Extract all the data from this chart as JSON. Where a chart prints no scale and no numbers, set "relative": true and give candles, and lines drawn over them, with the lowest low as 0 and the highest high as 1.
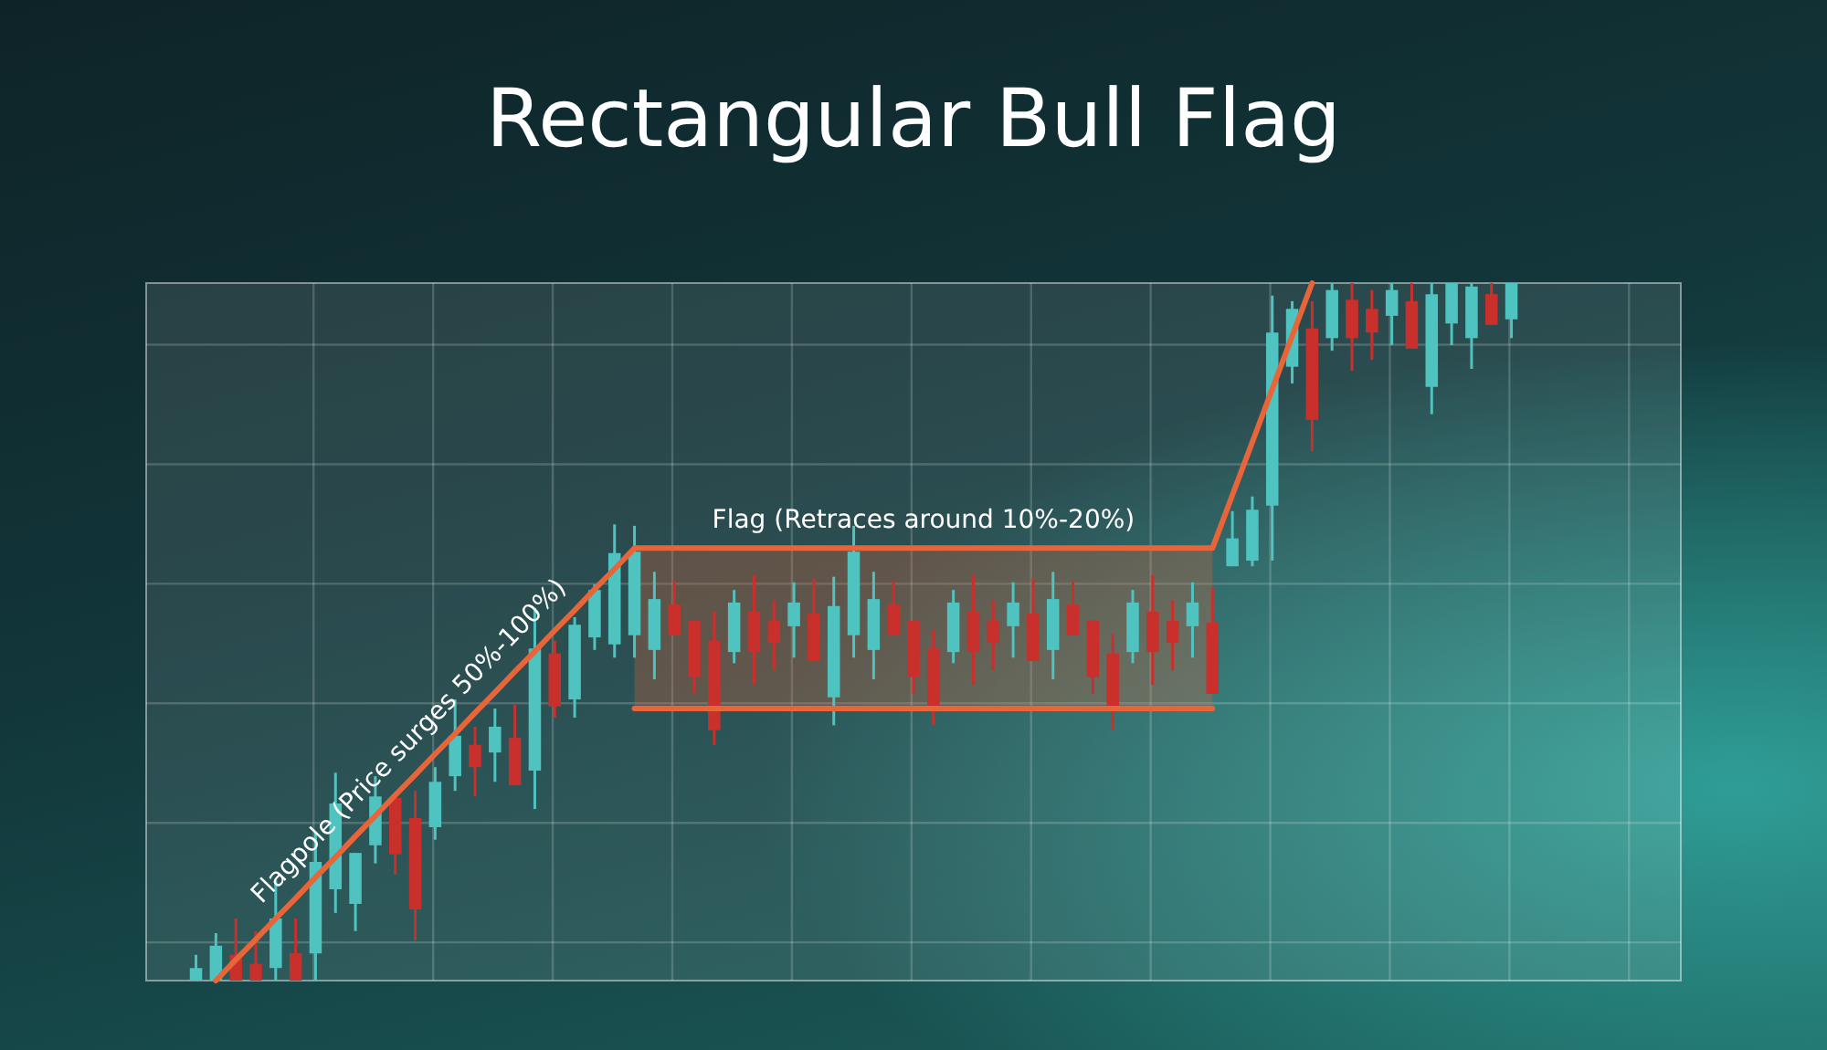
{
  "chart_data": {
    "type": "candlestick",
    "title": "Rectangular Bull Flag",
    "relative": true,
    "grid": true,
    "categories": [
      null,
      null,
      null,
      null,
      null,
      null,
      null,
      null,
      null,
      null,
      null,
      null,
      null,
      null,
      null,
      null,
      null,
      null,
      null,
      null,
      null,
      null,
      null,
      null,
      null,
      null,
      null,
      null,
      null,
      null,
      null,
      null,
      null,
      null,
      null,
      null,
      null,
      null,
      null,
      null,
      null,
      null,
      null,
      null,
      null,
      null,
      null,
      null,
      null,
      null,
      null,
      null,
      null,
      null,
      null,
      null,
      null,
      null,
      null,
      null,
      null,
      null,
      null,
      null,
      null,
      null,
      null,
      null,
      null,
      null,
      null,
      null,
      null,
      null,
      null,
      null,
      null
    ],
    "ohlc": [
      null,
      null,
      [
        0,
        0.037,
        0,
        0.018
      ],
      [
        0,
        0.068,
        0,
        0.05
      ],
      [
        0.037,
        0.089,
        0,
        0
      ],
      [
        0.024,
        0.071,
        0,
        0
      ],
      [
        0.018,
        0.144,
        0,
        0.089
      ],
      [
        0.039,
        0.089,
        0,
        0
      ],
      [
        0.039,
        0.212,
        0,
        0.17
      ],
      [
        0.131,
        0.298,
        0.097,
        0.254
      ],
      [
        0.11,
        0.183,
        0.071,
        0.183
      ],
      [
        0.194,
        0.293,
        0.168,
        0.264
      ],
      [
        0.262,
        0.262,
        0.152,
        0.181
      ],
      [
        0.233,
        0.272,
        0.058,
        0.102
      ],
      [
        0.22,
        0.306,
        0.202,
        0.285
      ],
      [
        0.293,
        0.403,
        0.272,
        0.351
      ],
      [
        0.338,
        0.364,
        0.264,
        0.306
      ],
      [
        0.327,
        0.39,
        0.285,
        0.364
      ],
      [
        0.348,
        0.395,
        0.28,
        0.28
      ],
      [
        0.301,
        0.534,
        0.246,
        0.476
      ],
      [
        0.469,
        0.487,
        0.377,
        0.393
      ],
      [
        0.403,
        0.521,
        0.377,
        0.51
      ],
      [
        0.492,
        0.568,
        0.474,
        0.56
      ],
      [
        0.482,
        0.654,
        0.463,
        0.613
      ],
      [
        0.495,
        0.652,
        0.463,
        0.615
      ],
      [
        0.474,
        0.586,
        0.432,
        0.547
      ],
      [
        0.539,
        0.573,
        0.495,
        0.495
      ],
      [
        0.516,
        0.516,
        0.411,
        0.435
      ],
      [
        0.487,
        0.529,
        0.338,
        0.359
      ],
      [
        0.471,
        0.56,
        0.455,
        0.542
      ],
      [
        0.529,
        0.581,
        0.424,
        0.471
      ],
      [
        0.516,
        0.545,
        0.445,
        0.484
      ],
      [
        0.508,
        0.571,
        0.463,
        0.542
      ],
      [
        0.526,
        0.576,
        0.458,
        0.458
      ],
      [
        0.406,
        0.579,
        0.366,
        0.537
      ],
      [
        0.495,
        0.652,
        0.463,
        0.615
      ],
      [
        0.474,
        0.586,
        0.432,
        0.547
      ],
      [
        0.539,
        0.573,
        0.495,
        0.495
      ],
      [
        0.516,
        0.516,
        0.411,
        0.435
      ],
      [
        0.476,
        0.503,
        0.366,
        0.39
      ],
      [
        0.471,
        0.56,
        0.455,
        0.542
      ],
      [
        0.529,
        0.581,
        0.424,
        0.471
      ],
      [
        0.516,
        0.545,
        0.445,
        0.484
      ],
      [
        0.508,
        0.571,
        0.463,
        0.542
      ],
      [
        0.526,
        0.576,
        0.458,
        0.458
      ],
      [
        0.474,
        0.586,
        0.432,
        0.547
      ],
      [
        0.539,
        0.573,
        0.495,
        0.495
      ],
      [
        0.516,
        0.516,
        0.411,
        0.435
      ],
      [
        0.469,
        0.497,
        0.359,
        0.39
      ],
      [
        0.471,
        0.56,
        0.455,
        0.542
      ],
      [
        0.529,
        0.581,
        0.424,
        0.471
      ],
      [
        0.516,
        0.545,
        0.445,
        0.484
      ],
      [
        0.508,
        0.571,
        0.463,
        0.542
      ],
      [
        0.513,
        0.563,
        0.411,
        0.411
      ],
      [
        0.594,
        0.673,
        0.594,
        0.634
      ],
      [
        0.602,
        0.694,
        0.594,
        0.675
      ],
      [
        0.681,
        0.982,
        0.602,
        0.929
      ],
      [
        0.88,
        0.974,
        0.856,
        0.963
      ],
      [
        0.935,
        0.974,
        0.759,
        0.804
      ],
      [
        0.921,
        1,
        0.903,
        0.99
      ],
      [
        0.976,
        1,
        0.874,
        0.921
      ],
      [
        0.963,
        0.99,
        0.89,
        0.929
      ],
      [
        0.953,
        1,
        0.911,
        0.99
      ],
      [
        0.974,
        1,
        0.906,
        0.906
      ],
      [
        0.851,
        1,
        0.812,
        0.984
      ],
      [
        0.942,
        1,
        0.911,
        1
      ],
      [
        0.921,
        1,
        0.877,
        0.995
      ],
      [
        0.984,
        1,
        0.94,
        0.94
      ],
      [
        0.948,
        1,
        0.921,
        1
      ],
      null,
      null,
      null,
      null,
      null,
      null,
      null,
      null
    ],
    "colors": [
      null,
      null,
      "#4fc3bf",
      "#4fc3bf",
      "#c9302c",
      "#c9302c",
      "#4fc3bf",
      "#c9302c",
      "#4fc3bf",
      "#4fc3bf",
      "#4fc3bf",
      "#4fc3bf",
      "#c9302c",
      "#c9302c",
      "#4fc3bf",
      "#4fc3bf",
      "#c9302c",
      "#4fc3bf",
      "#c9302c",
      "#4fc3bf",
      "#c9302c",
      "#4fc3bf",
      "#4fc3bf",
      "#4fc3bf",
      "#4fc3bf",
      "#4fc3bf",
      "#c9302c",
      "#c9302c",
      "#c9302c",
      "#4fc3bf",
      "#c9302c",
      "#c9302c",
      "#4fc3bf",
      "#c9302c",
      "#4fc3bf",
      "#4fc3bf",
      "#4fc3bf",
      "#c9302c",
      "#c9302c",
      "#c9302c",
      "#4fc3bf",
      "#c9302c",
      "#c9302c",
      "#4fc3bf",
      "#c9302c",
      "#4fc3bf",
      "#c9302c",
      "#c9302c",
      "#c9302c",
      "#4fc3bf",
      "#c9302c",
      "#c9302c",
      "#4fc3bf",
      "#c9302c",
      "#4fc3bf",
      "#4fc3bf",
      "#4fc3bf",
      "#4fc3bf",
      "#c9302c",
      "#4fc3bf",
      "#c9302c",
      "#c9302c",
      "#4fc3bf",
      "#c9302c",
      "#4fc3bf",
      "#4fc3bf",
      "#4fc3bf",
      "#c9302c",
      "#4fc3bf",
      null,
      null,
      null,
      null,
      null,
      null,
      null,
      null
    ],
    "series": [
      {
        "type": "line",
        "color": "#e8653a",
        "values": [
          null,
          null,
          null,
          0,
          0.03,
          0.059,
          0.089,
          0.118,
          0.148,
          0.177,
          0.207,
          0.236,
          0.266,
          0.295,
          0.325,
          0.354,
          0.384,
          0.413,
          0.443,
          0.472,
          0.502,
          0.531,
          0.561,
          0.59,
          0.62,
          0.62,
          0.62,
          0.62,
          0.62,
          0.62,
          0.62,
          0.62,
          0.62,
          0.62,
          0.62,
          0.62,
          0.62,
          0.62,
          0.62,
          0.62,
          0.62,
          0.62,
          0.62,
          0.62,
          0.62,
          0.62,
          0.62,
          0.62,
          0.62,
          0.62,
          0.62,
          0.62,
          0.62,
          0.62,
          0.696,
          0.772,
          0.848,
          0.924,
          1,
          null,
          null,
          null,
          null,
          null,
          null,
          null,
          null,
          null,
          null,
          null,
          null,
          null,
          null,
          null,
          null,
          null,
          null
        ]
      },
      {
        "type": "line",
        "color": "#e8653a",
        "values": [
          null,
          null,
          null,
          null,
          null,
          null,
          null,
          null,
          null,
          null,
          null,
          null,
          null,
          null,
          null,
          null,
          null,
          null,
          null,
          null,
          null,
          null,
          null,
          null,
          0.39,
          0.39,
          0.39,
          0.39,
          0.39,
          0.39,
          0.39,
          0.39,
          0.39,
          0.39,
          0.39,
          0.39,
          0.39,
          0.39,
          0.39,
          0.39,
          0.39,
          0.39,
          0.39,
          0.39,
          0.39,
          0.39,
          0.39,
          0.39,
          0.39,
          0.39,
          0.39,
          0.39,
          0.39,
          0.39,
          null,
          null,
          null,
          null,
          null,
          null,
          null,
          null,
          null,
          null,
          null,
          null,
          null,
          null,
          null,
          null,
          null,
          null,
          null,
          null,
          null,
          null,
          null
        ],
        "lower": [
          null,
          null,
          null,
          null,
          null,
          null,
          null,
          null,
          null,
          null,
          null,
          null,
          null,
          null,
          null,
          null,
          null,
          null,
          null,
          null,
          null,
          null,
          null,
          null,
          0.39,
          0.39,
          0.39,
          0.39,
          0.39,
          0.39,
          0.39,
          0.39,
          0.39,
          0.39,
          0.39,
          0.39,
          0.39,
          0.39,
          0.39,
          0.39,
          0.39,
          0.39,
          0.39,
          0.39,
          0.39,
          0.39,
          0.39,
          0.39,
          0.39,
          0.39,
          0.39,
          0.39,
          0.39,
          0.39,
          null,
          null,
          null,
          null,
          null,
          null,
          null,
          null,
          null,
          null,
          null,
          null,
          null,
          null,
          null,
          null,
          null,
          null,
          null,
          null,
          null,
          null,
          null
        ],
        "upper": [
          null,
          null,
          null,
          null,
          null,
          null,
          null,
          null,
          null,
          null,
          null,
          null,
          null,
          null,
          null,
          null,
          null,
          null,
          null,
          null,
          null,
          null,
          null,
          null,
          0.62,
          0.62,
          0.62,
          0.62,
          0.62,
          0.62,
          0.62,
          0.62,
          0.62,
          0.62,
          0.62,
          0.62,
          0.62,
          0.62,
          0.62,
          0.62,
          0.62,
          0.62,
          0.62,
          0.62,
          0.62,
          0.62,
          0.62,
          0.62,
          0.62,
          0.62,
          0.62,
          0.62,
          0.62,
          0.62,
          null,
          null,
          null,
          null,
          null,
          null,
          null,
          null,
          null,
          null,
          null,
          null,
          null,
          null,
          null,
          null,
          null,
          null,
          null,
          null,
          null,
          null,
          null
        ]
      }
    ],
    "annotations": [
      "Flagpole (Price surges 50%-100%)",
      "Flag (Retraces around 10%-20%)"
    ]
  }
}
